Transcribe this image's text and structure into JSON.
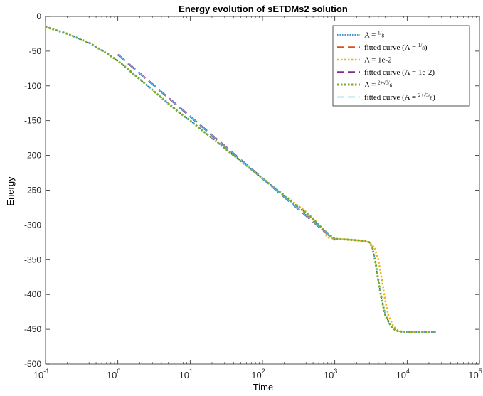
{
  "chart_data": {
    "type": "line",
    "title": "Energy evolution of sETDMs2 solution",
    "xlabel": "Time",
    "ylabel": "Energy",
    "xscale": "log",
    "xlim": [
      0.1,
      100000
    ],
    "ylim": [
      -500,
      0
    ],
    "grid": false,
    "legend_position": "top-right",
    "x_ticks": [
      {
        "value": 0.1,
        "base": "10",
        "exp": "-1"
      },
      {
        "value": 1,
        "base": "10",
        "exp": "0"
      },
      {
        "value": 10,
        "base": "10",
        "exp": "1"
      },
      {
        "value": 100,
        "base": "10",
        "exp": "2"
      },
      {
        "value": 1000,
        "base": "10",
        "exp": "3"
      },
      {
        "value": 10000,
        "base": "10",
        "exp": "4"
      },
      {
        "value": 100000,
        "base": "10",
        "exp": "5"
      }
    ],
    "y_ticks": [
      {
        "value": 0,
        "label": "0"
      },
      {
        "value": -50,
        "label": "-50"
      },
      {
        "value": -100,
        "label": "-100"
      },
      {
        "value": -150,
        "label": "-150"
      },
      {
        "value": -200,
        "label": "-200"
      },
      {
        "value": -250,
        "label": "-250"
      },
      {
        "value": -300,
        "label": "-300"
      },
      {
        "value": -350,
        "label": "-350"
      },
      {
        "value": -400,
        "label": "-400"
      },
      {
        "value": -450,
        "label": "-450"
      },
      {
        "value": -500,
        "label": "-500"
      }
    ],
    "series": [
      {
        "name": "A = 1/8",
        "legend": {
          "pre": "A = ",
          "frac": {
            "num": "1",
            "den": "8"
          },
          "post": ""
        },
        "color": "#0072BD",
        "style": "dotted",
        "width": 1.5,
        "points": [
          [
            0.1,
            -15
          ],
          [
            0.2,
            -25
          ],
          [
            0.4,
            -38
          ],
          [
            0.7,
            -53
          ],
          [
            1,
            -64
          ],
          [
            2,
            -90
          ],
          [
            4,
            -117
          ],
          [
            7,
            -138
          ],
          [
            10,
            -150
          ],
          [
            20,
            -175
          ],
          [
            50,
            -208
          ],
          [
            100,
            -233
          ],
          [
            200,
            -258
          ],
          [
            400,
            -283
          ],
          [
            600,
            -300
          ],
          [
            800,
            -313
          ],
          [
            1000,
            -320
          ],
          [
            1500,
            -321
          ],
          [
            2000,
            -322
          ],
          [
            2500,
            -323
          ],
          [
            3000,
            -325
          ],
          [
            3300,
            -332
          ],
          [
            3600,
            -350
          ],
          [
            4000,
            -380
          ],
          [
            4500,
            -410
          ],
          [
            5000,
            -430
          ],
          [
            6000,
            -446
          ],
          [
            7000,
            -452
          ],
          [
            9000,
            -454
          ],
          [
            15000,
            -454
          ],
          [
            25000,
            -454
          ]
        ]
      },
      {
        "name": "fitted curve (A = 1/8)",
        "legend": {
          "pre": "fitted curve (A = ",
          "frac": {
            "num": "1",
            "den": "8"
          },
          "post": ")"
        },
        "color": "#D95319",
        "style": "dashed",
        "width": 2.5,
        "points": [
          [
            1,
            -55
          ],
          [
            1000,
            -322
          ]
        ]
      },
      {
        "name": "A = 1e-2",
        "legend": {
          "pre": "A = 1e-2",
          "frac": null,
          "post": ""
        },
        "color": "#EDB120",
        "style": "dotted",
        "width": 2.5,
        "points": [
          [
            0.1,
            -15
          ],
          [
            0.2,
            -25
          ],
          [
            0.4,
            -38
          ],
          [
            0.7,
            -53
          ],
          [
            1,
            -64
          ],
          [
            2,
            -90
          ],
          [
            4,
            -117
          ],
          [
            7,
            -138
          ],
          [
            10,
            -150
          ],
          [
            20,
            -175
          ],
          [
            50,
            -208
          ],
          [
            100,
            -233
          ],
          [
            200,
            -257
          ],
          [
            400,
            -281
          ],
          [
            500,
            -290
          ],
          [
            600,
            -300
          ],
          [
            800,
            -318
          ],
          [
            1000,
            -320
          ],
          [
            1500,
            -321
          ],
          [
            2000,
            -322
          ],
          [
            2500,
            -323
          ],
          [
            3000,
            -325
          ],
          [
            3500,
            -332
          ],
          [
            4000,
            -350
          ],
          [
            4500,
            -380
          ],
          [
            5000,
            -410
          ],
          [
            5500,
            -430
          ],
          [
            6500,
            -446
          ],
          [
            7500,
            -452
          ],
          [
            9000,
            -454
          ],
          [
            15000,
            -454
          ],
          [
            25000,
            -454
          ]
        ]
      },
      {
        "name": "fitted curve (A = 1e-2)",
        "legend": {
          "pre": "fitted curve (A = 1e-2)",
          "frac": null,
          "post": ""
        },
        "color": "#7E2F8E",
        "style": "dashed",
        "width": 2.5,
        "points": [
          [
            1,
            -55
          ],
          [
            1000,
            -322
          ]
        ]
      },
      {
        "name": "A = (2+√3)/6",
        "legend": {
          "pre": "A = ",
          "frac": {
            "num": "2+√3",
            "den": "6"
          },
          "post": ""
        },
        "color": "#77AC30",
        "style": "dotted",
        "width": 3,
        "points": [
          [
            0.1,
            -15
          ],
          [
            0.2,
            -25
          ],
          [
            0.4,
            -38
          ],
          [
            0.7,
            -53
          ],
          [
            1,
            -64
          ],
          [
            2,
            -90
          ],
          [
            4,
            -117
          ],
          [
            7,
            -138
          ],
          [
            10,
            -150
          ],
          [
            20,
            -175
          ],
          [
            50,
            -208
          ],
          [
            100,
            -233
          ],
          [
            200,
            -258
          ],
          [
            400,
            -283
          ],
          [
            600,
            -300
          ],
          [
            800,
            -313
          ],
          [
            1000,
            -320
          ],
          [
            1500,
            -321
          ],
          [
            2000,
            -322
          ],
          [
            2500,
            -323
          ],
          [
            3000,
            -325
          ],
          [
            3300,
            -332
          ],
          [
            3600,
            -350
          ],
          [
            4000,
            -380
          ],
          [
            4500,
            -410
          ],
          [
            5000,
            -430
          ],
          [
            6000,
            -446
          ],
          [
            7000,
            -452
          ],
          [
            9000,
            -454
          ],
          [
            15000,
            -454
          ],
          [
            25000,
            -454
          ]
        ]
      },
      {
        "name": "fitted curve (A = (2+√3)/6)",
        "legend": {
          "pre": "fitted curve (A = ",
          "frac": {
            "num": "2+√3",
            "den": "6"
          },
          "post": ")"
        },
        "color": "#4DBEEE",
        "style": "dashed",
        "width": 1.5,
        "points": [
          [
            1,
            -55
          ],
          [
            1000,
            -322
          ]
        ]
      }
    ]
  }
}
